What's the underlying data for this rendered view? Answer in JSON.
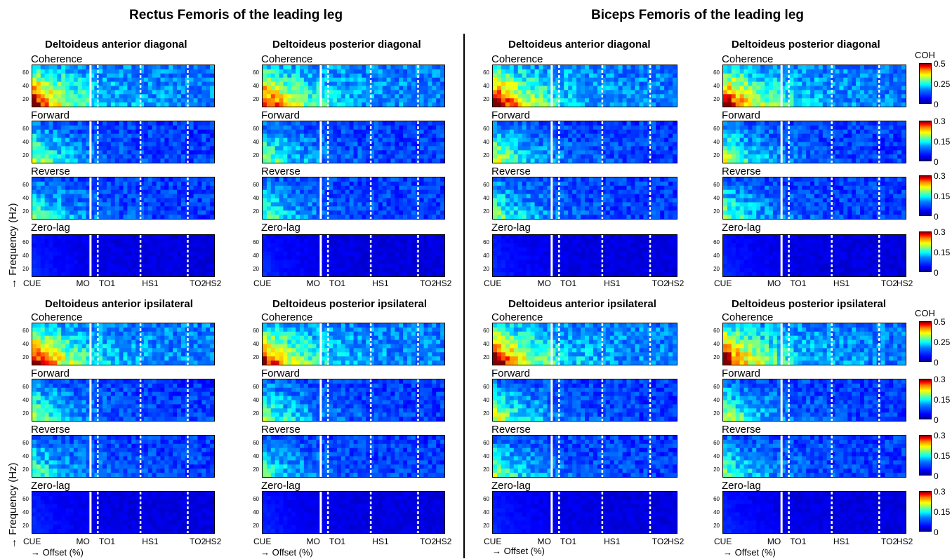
{
  "section_titles": [
    "Rectus Femoris of the leading leg",
    "Biceps Femoris of the leading leg"
  ],
  "muscle_titles": [
    "Deltoideus anterior diagonal",
    "Deltoideus posterior diagonal",
    "Deltoideus anterior diagonal",
    "Deltoideus posterior diagonal",
    "Deltoideus anterior ipsilateral",
    "Deltoideus posterior ipsilateral",
    "Deltoideus anterior ipsilateral",
    "Deltoideus posterior ipsilateral"
  ],
  "row_labels": [
    "Coherence",
    "Forward",
    "Reverse",
    "Zero-lag"
  ],
  "y_ticks": [
    "60",
    "40",
    "20"
  ],
  "x_tick_labels": [
    "CUE",
    "MO",
    "TO1",
    "HS1",
    "TO2",
    "HS2"
  ],
  "x_axis_label": "→ Offset (%)",
  "y_axis_label": "→ Frequency (Hz)",
  "colorbar": {
    "title": "COH",
    "coherence_ticks": [
      "0.5",
      "0.25",
      "0"
    ],
    "directional_ticks": [
      "0.3",
      "0.15",
      "0"
    ]
  },
  "colors": {
    "colormap": [
      "#00008f",
      "#0000ff",
      "#0080ff",
      "#00ffff",
      "#80ff80",
      "#ffff00",
      "#ff8000",
      "#ff0000",
      "#800000"
    ],
    "event_line": "#ffffff"
  },
  "chart_data": {
    "type": "heatmap",
    "panels": [
      "Rectus Femoris of the leading leg",
      "Biceps Femoris of the leading leg"
    ],
    "muscles": [
      "Deltoideus anterior diagonal",
      "Deltoideus posterior diagonal",
      "Deltoideus anterior ipsilateral",
      "Deltoideus posterior ipsilateral"
    ],
    "rows": [
      "Coherence",
      "Forward",
      "Reverse",
      "Zero-lag"
    ],
    "x_events": [
      "CUE",
      "MO",
      "TO1",
      "HS1",
      "TO2",
      "HS2"
    ],
    "event_lines": {
      "solid": [
        "MO"
      ],
      "dashed": [
        "TO1",
        "HS1",
        "TO2"
      ]
    },
    "ylim": [
      5,
      70
    ],
    "ylabel": "→ Frequency (Hz)",
    "xlabel": "→ Offset (%)",
    "color_range": {
      "Coherence": [
        0,
        0.5
      ],
      "Forward": [
        0,
        0.3
      ],
      "Reverse": [
        0,
        0.3
      ],
      "Zero-lag": [
        0,
        0.3
      ]
    },
    "colorbar_label": "COH"
  }
}
